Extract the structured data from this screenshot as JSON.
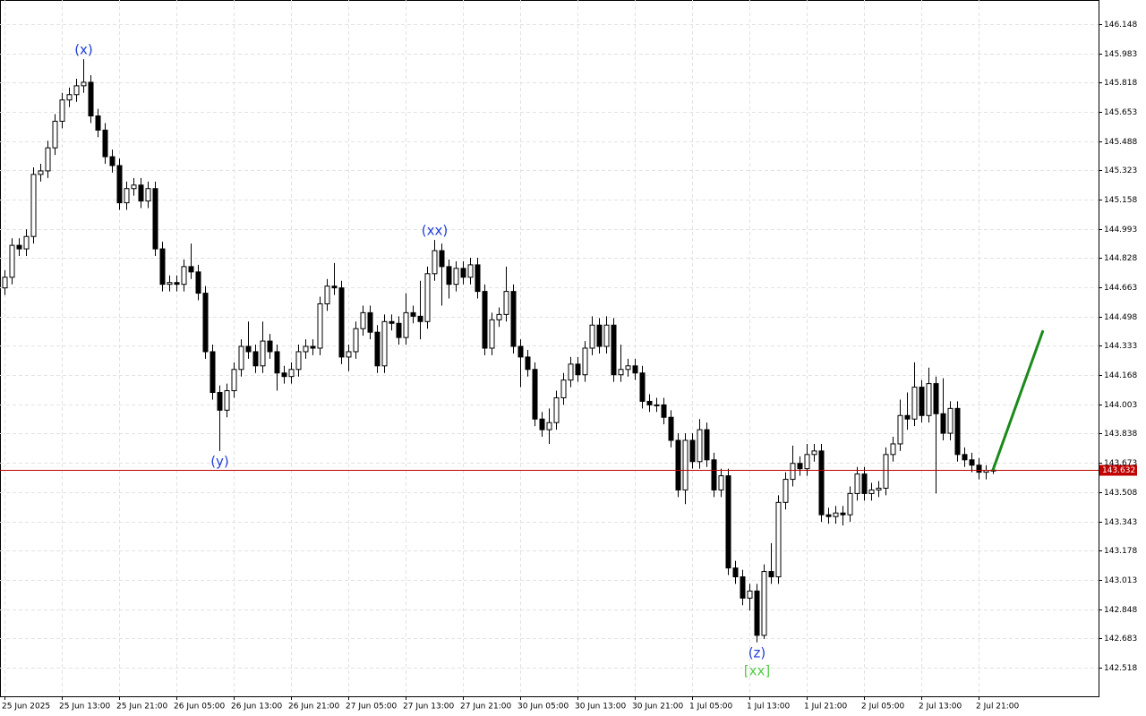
{
  "chart_data": {
    "type": "candlestick",
    "categories": [
      "25 Jun 2025",
      null,
      null,
      null,
      null,
      null,
      null,
      null,
      "25 Jun 13:00",
      null,
      null,
      null,
      null,
      null,
      null,
      null,
      "25 Jun 21:00",
      null,
      null,
      null,
      null,
      null,
      null,
      null,
      "26 Jun 05:00",
      null,
      null,
      null,
      null,
      null,
      null,
      null,
      "26 Jun 13:00",
      null,
      null,
      null,
      null,
      null,
      null,
      null,
      "26 Jun 21:00",
      null,
      null,
      null,
      null,
      null,
      null,
      null,
      "27 Jun 05:00",
      null,
      null,
      null,
      null,
      null,
      null,
      null,
      "27 Jun 13:00",
      null,
      null,
      null,
      null,
      null,
      null,
      null,
      "27 Jun 21:00",
      null,
      null,
      null,
      null,
      null,
      null,
      null,
      "30 Jun 05:00",
      null,
      null,
      null,
      null,
      null,
      null,
      null,
      "30 Jun 13:00",
      null,
      null,
      null,
      null,
      null,
      null,
      null,
      "30 Jun 21:00",
      null,
      null,
      null,
      null,
      null,
      null,
      null,
      "1 Jul 05:00",
      null,
      null,
      null,
      null,
      null,
      null,
      null,
      "1 Jul 13:00",
      null,
      null,
      null,
      null,
      null,
      null,
      null,
      "1 Jul 21:00",
      null,
      null,
      null,
      null,
      null,
      null,
      null,
      "2 Jul 05:00",
      null,
      null,
      null,
      null,
      null,
      null,
      null,
      "2 Jul 13:00",
      null,
      null,
      null,
      null,
      null,
      null,
      null,
      "2 Jul 21:00",
      null,
      null
    ],
    "open": [
      144.66,
      144.72,
      144.9,
      144.88,
      144.95,
      145.3,
      145.32,
      145.45,
      145.6,
      145.72,
      145.75,
      145.8,
      145.82,
      145.63,
      145.55,
      145.4,
      145.35,
      145.14,
      145.22,
      145.24,
      145.15,
      145.22,
      144.88,
      144.68,
      144.69,
      144.68,
      144.78,
      144.75,
      144.63,
      144.3,
      144.07,
      143.97,
      144.08,
      144.2,
      144.33,
      144.3,
      144.22,
      144.36,
      144.3,
      144.18,
      144.16,
      144.2,
      144.3,
      144.33,
      144.32,
      144.57,
      144.67,
      144.66,
      144.27,
      144.3,
      144.43,
      144.52,
      144.41,
      144.22,
      144.47,
      144.46,
      144.38,
      144.52,
      144.5,
      144.47,
      144.74,
      144.87,
      144.78,
      144.68,
      144.77,
      144.72,
      144.79,
      144.64,
      144.32,
      144.48,
      144.51,
      144.64,
      144.33,
      144.27,
      144.2,
      143.92,
      143.86,
      143.9,
      144.04,
      144.14,
      144.23,
      144.17,
      144.32,
      144.45,
      144.33,
      144.45,
      144.17,
      144.2,
      144.22,
      144.18,
      144.02,
      144.0,
      144.0,
      143.93,
      143.8,
      143.52,
      143.8,
      143.68,
      143.86,
      143.69,
      143.52,
      143.6,
      143.08,
      143.03,
      142.91,
      142.95,
      142.7,
      143.06,
      143.03,
      143.45,
      143.58,
      143.67,
      143.64,
      143.72,
      143.74,
      143.38,
      143.37,
      143.39,
      143.38,
      143.5,
      143.61,
      143.5,
      143.52,
      143.53,
      143.72,
      143.78,
      143.94,
      143.92,
      144.1,
      143.94,
      144.12,
      143.95,
      143.84,
      143.98,
      143.72,
      143.69,
      143.66,
      143.62,
      143.63
    ],
    "high": [
      144.76,
      144.94,
      144.94,
      144.99,
      145.34,
      145.36,
      145.49,
      145.64,
      145.76,
      145.79,
      145.84,
      145.95,
      145.86,
      145.67,
      145.59,
      145.44,
      145.39,
      145.26,
      145.28,
      145.28,
      145.26,
      145.26,
      144.92,
      144.73,
      144.73,
      144.82,
      144.91,
      144.79,
      144.67,
      144.34,
      144.11,
      144.12,
      144.24,
      144.37,
      144.47,
      144.34,
      144.47,
      144.4,
      144.34,
      144.22,
      144.24,
      144.34,
      144.37,
      144.37,
      144.61,
      144.71,
      144.8,
      144.7,
      144.34,
      144.47,
      144.56,
      144.56,
      144.45,
      144.51,
      144.51,
      144.5,
      144.63,
      144.56,
      144.7,
      144.78,
      144.93,
      144.91,
      144.82,
      144.81,
      144.81,
      144.83,
      144.83,
      144.68,
      144.52,
      144.55,
      144.78,
      144.68,
      144.37,
      144.31,
      144.24,
      143.96,
      143.98,
      144.08,
      144.18,
      144.27,
      144.27,
      144.36,
      144.5,
      144.49,
      144.5,
      144.49,
      144.34,
      144.26,
      144.26,
      144.22,
      144.06,
      144.04,
      144.04,
      143.97,
      143.84,
      143.84,
      143.84,
      143.92,
      143.9,
      143.73,
      143.64,
      143.64,
      143.12,
      143.07,
      142.99,
      142.99,
      143.1,
      143.22,
      143.49,
      143.62,
      143.77,
      143.71,
      143.78,
      143.78,
      143.78,
      143.42,
      143.43,
      143.43,
      143.54,
      143.65,
      143.65,
      143.56,
      143.57,
      143.76,
      143.82,
      144.03,
      144.07,
      144.24,
      144.14,
      144.21,
      144.16,
      144.15,
      144.02,
      144.02,
      143.76,
      143.73,
      143.7,
      143.66,
      143.66
    ],
    "low": [
      144.62,
      144.68,
      144.84,
      144.84,
      144.91,
      145.26,
      145.28,
      145.41,
      145.56,
      145.68,
      145.71,
      145.76,
      145.59,
      145.51,
      145.36,
      145.31,
      145.1,
      145.1,
      145.18,
      145.11,
      145.11,
      144.84,
      144.64,
      144.64,
      144.64,
      144.64,
      144.71,
      144.59,
      144.26,
      144.03,
      143.74,
      143.93,
      144.04,
      144.16,
      144.26,
      144.18,
      144.18,
      144.26,
      144.08,
      144.12,
      144.12,
      144.16,
      144.26,
      144.28,
      144.28,
      144.53,
      144.62,
      144.23,
      144.19,
      144.26,
      144.39,
      144.37,
      144.18,
      144.18,
      144.42,
      144.34,
      144.34,
      144.46,
      144.37,
      144.43,
      144.7,
      144.56,
      144.6,
      144.64,
      144.68,
      144.68,
      144.6,
      144.28,
      144.28,
      144.44,
      144.47,
      144.29,
      144.1,
      144.16,
      143.88,
      143.82,
      143.78,
      143.86,
      144.0,
      144.1,
      144.13,
      144.13,
      144.28,
      144.29,
      144.29,
      144.13,
      144.13,
      144.16,
      144.14,
      143.98,
      143.96,
      143.96,
      143.89,
      143.76,
      143.48,
      143.44,
      143.64,
      143.64,
      143.65,
      143.48,
      143.48,
      143.04,
      142.99,
      142.87,
      142.84,
      142.66,
      142.68,
      142.99,
      142.99,
      143.41,
      143.54,
      143.6,
      143.6,
      143.68,
      143.34,
      143.33,
      143.33,
      143.32,
      143.34,
      143.46,
      143.46,
      143.46,
      143.48,
      143.49,
      143.68,
      143.74,
      143.86,
      143.88,
      143.9,
      143.9,
      143.5,
      143.8,
      143.8,
      143.68,
      143.65,
      143.62,
      143.58,
      143.58,
      143.61
    ],
    "close": [
      144.72,
      144.9,
      144.88,
      144.95,
      145.3,
      145.32,
      145.45,
      145.6,
      145.72,
      145.75,
      145.8,
      145.82,
      145.63,
      145.55,
      145.4,
      145.35,
      145.14,
      145.22,
      145.24,
      145.15,
      145.22,
      144.88,
      144.68,
      144.69,
      144.68,
      144.78,
      144.75,
      144.63,
      144.3,
      144.07,
      143.97,
      144.08,
      144.2,
      144.33,
      144.3,
      144.22,
      144.36,
      144.3,
      144.18,
      144.16,
      144.2,
      144.3,
      144.33,
      144.32,
      144.57,
      144.67,
      144.66,
      144.27,
      144.3,
      144.43,
      144.52,
      144.41,
      144.22,
      144.47,
      144.46,
      144.38,
      144.52,
      144.5,
      144.47,
      144.74,
      144.87,
      144.78,
      144.68,
      144.77,
      144.72,
      144.79,
      144.64,
      144.32,
      144.48,
      144.51,
      144.64,
      144.33,
      144.27,
      144.2,
      143.92,
      143.86,
      143.9,
      144.04,
      144.14,
      144.23,
      144.17,
      144.32,
      144.45,
      144.33,
      144.45,
      144.17,
      144.2,
      144.22,
      144.18,
      144.02,
      144.0,
      144.0,
      143.93,
      143.8,
      143.52,
      143.8,
      143.68,
      143.86,
      143.69,
      143.52,
      143.6,
      143.08,
      143.03,
      142.91,
      142.95,
      142.7,
      143.06,
      143.03,
      143.45,
      143.58,
      143.67,
      143.64,
      143.72,
      143.74,
      143.38,
      143.37,
      143.39,
      143.38,
      143.5,
      143.61,
      143.5,
      143.52,
      143.53,
      143.72,
      143.78,
      143.94,
      143.92,
      144.1,
      143.94,
      144.12,
      143.95,
      143.84,
      143.98,
      143.72,
      143.69,
      143.66,
      143.62,
      143.63,
      143.632
    ],
    "up_color": "#ffffff",
    "down_color": "#000000",
    "ylim": [
      142.356,
      146.284
    ],
    "yticks": [
      146.148,
      145.983,
      145.818,
      145.653,
      145.488,
      145.323,
      145.158,
      144.993,
      144.828,
      144.663,
      144.498,
      144.333,
      144.168,
      144.003,
      143.838,
      143.673,
      143.508,
      143.343,
      143.178,
      143.013,
      142.848,
      142.683,
      142.518
    ],
    "grid": true,
    "current_price": 143.632,
    "current_price_color": "#c00000",
    "forecast": {
      "color": "#1a8a1a",
      "x": [
        138,
        145
      ],
      "values": [
        143.632,
        144.42
      ]
    },
    "annotations": [
      {
        "text": "(x)",
        "index": 11,
        "position": "above",
        "color": "#1f3fd6"
      },
      {
        "text": "(y)",
        "index": 30,
        "position": "below",
        "color": "#1f3fd6"
      },
      {
        "text": "(xx)",
        "index": 60,
        "position": "above",
        "color": "#1f3fd6"
      },
      {
        "text": "(z)",
        "index": 105,
        "position": "below",
        "color": "#1f3fd6"
      },
      {
        "text": "[xx]",
        "index": 105,
        "position": "below",
        "color": "#4fcf3f"
      }
    ]
  }
}
